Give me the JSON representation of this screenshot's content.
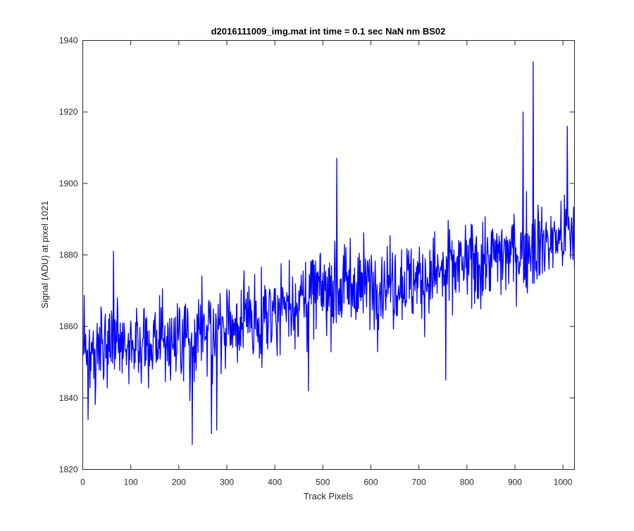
{
  "chart_data": {
    "type": "line",
    "title": "d2016111009_img.mat int time = 0.1 sec  NaN nm BS02",
    "xlabel": "Track Pixels",
    "ylabel": "Signal (ADU) at pixel 1021",
    "xlim": [
      0,
      1024
    ],
    "ylim": [
      1820,
      1940
    ],
    "xticks": [
      0,
      100,
      200,
      300,
      400,
      500,
      600,
      700,
      800,
      900,
      1000
    ],
    "yticks": [
      1820,
      1840,
      1860,
      1880,
      1900,
      1920,
      1940
    ],
    "grid": false,
    "legend": "none",
    "series_color": "#0000ff",
    "series": [
      {
        "x_start": 1,
        "x_step": 1,
        "trend": [
          [
            1,
            1853
          ],
          [
            100,
            1855
          ],
          [
            200,
            1857
          ],
          [
            300,
            1859
          ],
          [
            400,
            1865
          ],
          [
            500,
            1870
          ],
          [
            600,
            1872
          ],
          [
            700,
            1873
          ],
          [
            800,
            1877
          ],
          [
            900,
            1881
          ],
          [
            1024,
            1886
          ]
        ],
        "noise_amplitude": 8.5,
        "extremes": [
          [
            11,
            1834
          ],
          [
            64,
            1881
          ],
          [
            228,
            1827
          ],
          [
            268,
            1830
          ],
          [
            279,
            1831
          ],
          [
            470,
            1842
          ],
          [
            529,
            1907
          ],
          [
            756,
            1845
          ],
          [
            917,
            1920
          ],
          [
            938,
            1934
          ],
          [
            1009,
            1916
          ]
        ]
      }
    ]
  }
}
